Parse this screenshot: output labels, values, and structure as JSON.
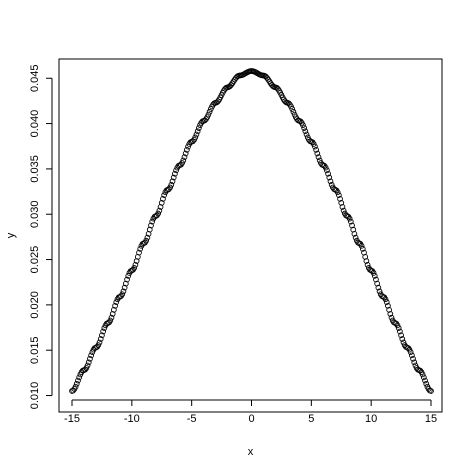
{
  "chart_data": {
    "type": "scatter",
    "title": "",
    "xlabel": "x",
    "ylabel": "y",
    "xlim": [
      -15,
      15
    ],
    "ylim": [
      0.0105,
      0.0458
    ],
    "x_ticks": [
      -15,
      -10,
      -5,
      0,
      5,
      10,
      15
    ],
    "x_tick_labels": [
      "-15",
      "-10",
      "-5",
      "0",
      "5",
      "10",
      "15"
    ],
    "y_ticks": [
      0.01,
      0.015,
      0.02,
      0.025,
      0.03,
      0.035,
      0.04,
      0.045
    ],
    "y_tick_labels": [
      "0.010",
      "0.015",
      "0.020",
      "0.025",
      "0.030",
      "0.035",
      "0.040",
      "0.045"
    ],
    "grid": false,
    "legend": "none",
    "marker": "open-circle",
    "color": "#000000",
    "x": [
      -15,
      -14,
      -13,
      -12,
      -11,
      -10,
      -9,
      -8,
      -7,
      -6,
      -5,
      -4,
      -3,
      -2,
      -1,
      0,
      1,
      2,
      3,
      4,
      5,
      6,
      7,
      8,
      9,
      10,
      11,
      12,
      13,
      14,
      15
    ],
    "y": [
      0.0105,
      0.0128,
      0.0153,
      0.018,
      0.0209,
      0.0238,
      0.0268,
      0.0298,
      0.0327,
      0.0354,
      0.038,
      0.0403,
      0.0423,
      0.044,
      0.0453,
      0.0458,
      0.0453,
      0.044,
      0.0423,
      0.0403,
      0.038,
      0.0354,
      0.0327,
      0.0298,
      0.0268,
      0.0238,
      0.0209,
      0.018,
      0.0153,
      0.0128,
      0.0105
    ]
  }
}
